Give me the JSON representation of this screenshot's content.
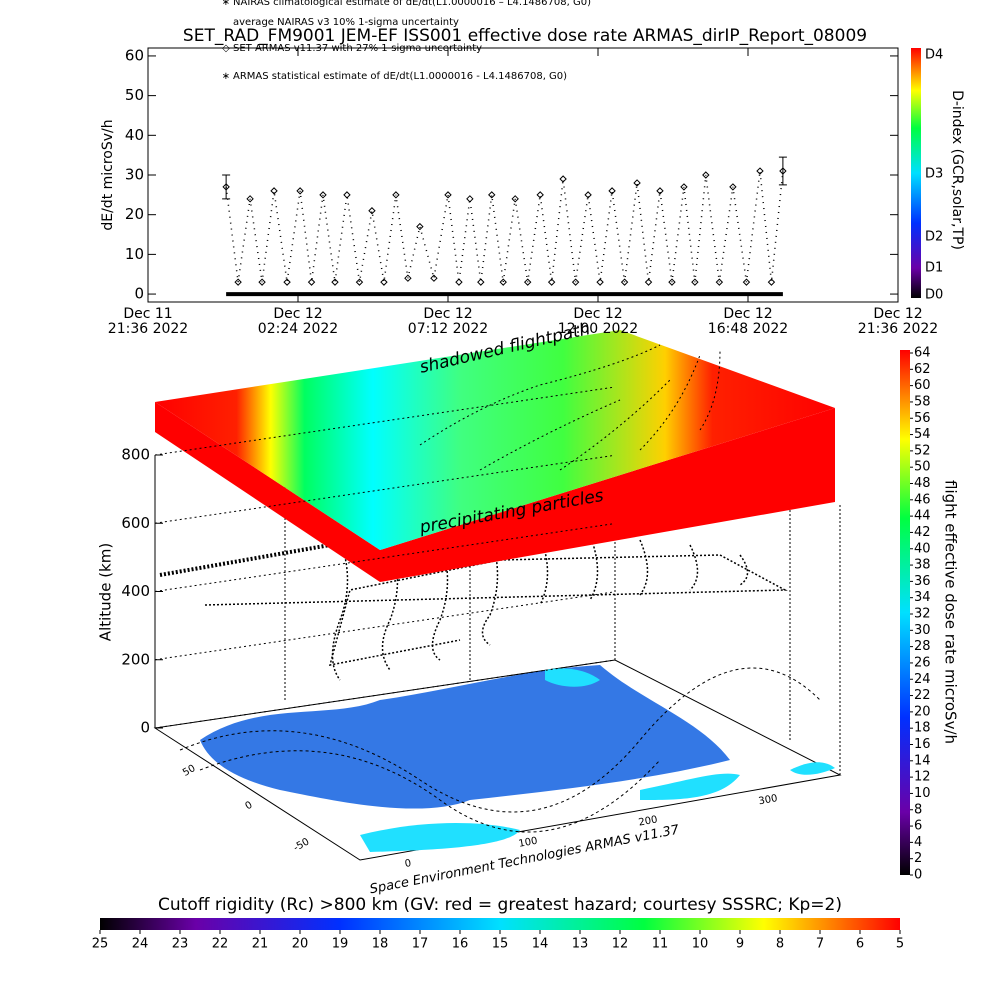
{
  "chart_data": [
    {
      "type": "scatter",
      "title": "SET_RAD_FM9001 JEM-EF ISS001 effective dose rate ARMAS_dirIP_Report_08009",
      "ylabel": "dE/dt microSv/h",
      "annotations": [
        "average NAIRAS v3 10% 1-sigma uncertainty",
        "ARMAS statistical estimate of dE/dt(L1.0000016 - L4.1486708, G0)"
      ],
      "xlim": [
        "2022-12-11 21:36",
        "2022-12-12 21:36"
      ],
      "xticks": [
        {
          "value": "2022-12-11 21:36",
          "label": "Dec 11\n21:36 2022"
        },
        {
          "value": "2022-12-12 02:24",
          "label": "Dec 12\n02:24 2022"
        },
        {
          "value": "2022-12-12 07:12",
          "label": "Dec 12\n07:12 2022"
        },
        {
          "value": "2022-12-12 12:00",
          "label": "Dec 12\n12:00 2022"
        },
        {
          "value": "2022-12-12 16:48",
          "label": "Dec 12\n16:48 2022"
        },
        {
          "value": "2022-12-12 21:36",
          "label": "Dec 12\n21:36 2022"
        }
      ],
      "ylim": [
        -2,
        62
      ],
      "yticks": [
        0,
        10,
        20,
        30,
        40,
        50,
        60
      ],
      "series": [
        {
          "name": "SET ARMAS v11.37 with 27% 1-sigma uncertainty",
          "color": "#000000",
          "x": [
            "2022-12-12 00:06",
            "2022-12-12 00:29",
            "2022-12-12 00:52",
            "2022-12-12 01:15",
            "2022-12-12 01:38",
            "2022-12-12 02:03",
            "2022-12-12 02:28",
            "2022-12-12 02:50",
            "2022-12-12 03:12",
            "2022-12-12 03:35",
            "2022-12-12 03:58",
            "2022-12-12 04:22",
            "2022-12-12 04:46",
            "2022-12-12 05:09",
            "2022-12-12 05:32",
            "2022-12-12 05:55",
            "2022-12-12 06:18",
            "2022-12-12 06:45",
            "2022-12-12 07:12",
            "2022-12-12 07:33",
            "2022-12-12 07:54",
            "2022-12-12 08:15",
            "2022-12-12 08:36",
            "2022-12-12 08:58",
            "2022-12-12 09:21",
            "2022-12-12 09:45",
            "2022-12-12 10:09",
            "2022-12-12 10:31",
            "2022-12-12 10:53",
            "2022-12-12 11:17",
            "2022-12-12 11:41",
            "2022-12-12 12:04",
            "2022-12-12 12:27",
            "2022-12-12 12:51",
            "2022-12-12 13:15",
            "2022-12-12 13:37",
            "2022-12-12 13:59",
            "2022-12-12 14:22",
            "2022-12-12 14:45",
            "2022-12-12 15:06",
            "2022-12-12 15:27",
            "2022-12-12 15:53",
            "2022-12-12 16:19",
            "2022-12-12 16:45",
            "2022-12-12 17:11",
            "2022-12-12 17:33",
            "2022-12-12 17:55"
          ],
          "values": [
            27,
            3,
            24,
            3,
            26,
            3,
            26,
            3,
            25,
            3,
            25,
            3,
            21,
            3,
            25,
            4,
            17,
            4,
            25,
            3,
            24,
            3,
            25,
            3,
            24,
            3,
            25,
            3,
            29,
            3,
            25,
            3,
            26,
            3,
            28,
            3,
            26,
            3,
            27,
            3,
            30,
            3,
            27,
            3,
            31,
            3,
            31
          ],
          "errors": [
            3,
            null,
            null,
            null,
            null,
            null,
            null,
            null,
            null,
            null,
            null,
            null,
            null,
            null,
            null,
            null,
            null,
            null,
            null,
            null,
            null,
            null,
            null,
            null,
            null,
            null,
            null,
            null,
            null,
            null,
            null,
            null,
            null,
            null,
            null,
            null,
            null,
            null,
            null,
            null,
            null,
            null,
            null,
            null,
            null,
            null,
            3.5
          ]
        },
        {
          "name": "NAIRAS climatological estimate of dE/dt(L1.0000016 – L4.1486708, G0)",
          "color": "#000000",
          "x": [
            "2022-12-12 00:06",
            "2022-12-12 17:55"
          ],
          "values": [
            0,
            0
          ]
        }
      ],
      "colorbar": {
        "label": "D-index (GCR,solar,TP)",
        "ticks": [
          "D0",
          "D1",
          "D2",
          "D3",
          "D4"
        ]
      }
    },
    {
      "type": "surface3d",
      "zlabel": "Altitude (km)",
      "zlim": [
        0,
        800
      ],
      "zticks": [
        0,
        200,
        400,
        600,
        800
      ],
      "xticks": [
        0,
        100,
        200,
        300
      ],
      "yticks": [
        -50,
        0,
        50
      ],
      "annotations": [
        "shadowed flightpath",
        "precipitating particles",
        "Space Environment Technologies ARMAS v11.37"
      ],
      "colorbar": {
        "label": "flight effective dose rate microSv/h",
        "lim": [
          0,
          64
        ],
        "ticks": [
          0,
          2,
          4,
          6,
          8,
          10,
          12,
          14,
          16,
          18,
          20,
          22,
          24,
          26,
          28,
          30,
          32,
          34,
          36,
          38,
          40,
          42,
          44,
          46,
          48,
          50,
          52,
          54,
          56,
          58,
          60,
          62,
          64
        ]
      }
    },
    {
      "type": "colorbar",
      "title": "Cutoff rigidity (Rc) >800 km (GV: red = greatest hazard; courtesy SSSRC; Kp=2)",
      "lim": [
        25,
        5
      ],
      "ticks": [
        25,
        24,
        23,
        22,
        21,
        20,
        19,
        18,
        17,
        16,
        15,
        14,
        13,
        12,
        11,
        10,
        9,
        8,
        7,
        6,
        5
      ]
    }
  ]
}
